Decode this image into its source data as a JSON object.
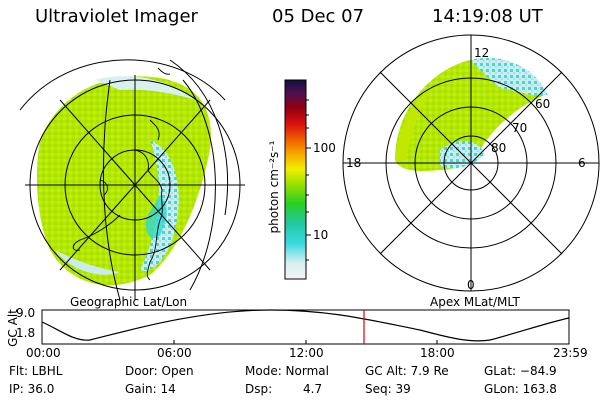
{
  "header": {
    "instrument": "Ultraviolet Imager",
    "date": "05 Dec 07",
    "time": "14:19:08 UT"
  },
  "colorbar": {
    "unit_label": "photon cm⁻²s⁻¹",
    "ticks": [
      "100",
      "10"
    ]
  },
  "left_panel": {
    "caption": "Geographic Lat/Lon"
  },
  "right_panel": {
    "caption": "Apex MLat/MLT",
    "mlt_labels": [
      "12",
      "18",
      "6",
      "0"
    ],
    "lat_labels": [
      "60",
      "70",
      "80"
    ]
  },
  "altitude_plot": {
    "ylabel": "GC Alt",
    "ytick_labels": [
      "9.0",
      "1.8"
    ],
    "x_tick_labels": [
      "00:00",
      "06:00",
      "12:00",
      "18:00",
      "23:59"
    ],
    "current_marker_color": "#e00000"
  },
  "info": {
    "filter": "Flt: LBHL",
    "ip": "IP: 36.0",
    "door": "Door: Open",
    "gain": "Gain: 14",
    "mode": "Mode: Normal",
    "dsp_label": "Dsp:",
    "dsp_value": "4.7",
    "gc_alt": "GC Alt: 7.9 Re",
    "seq": "Seq: 39",
    "glat": "GLat: −84.9",
    "glon": "GLon: 163.8"
  }
}
